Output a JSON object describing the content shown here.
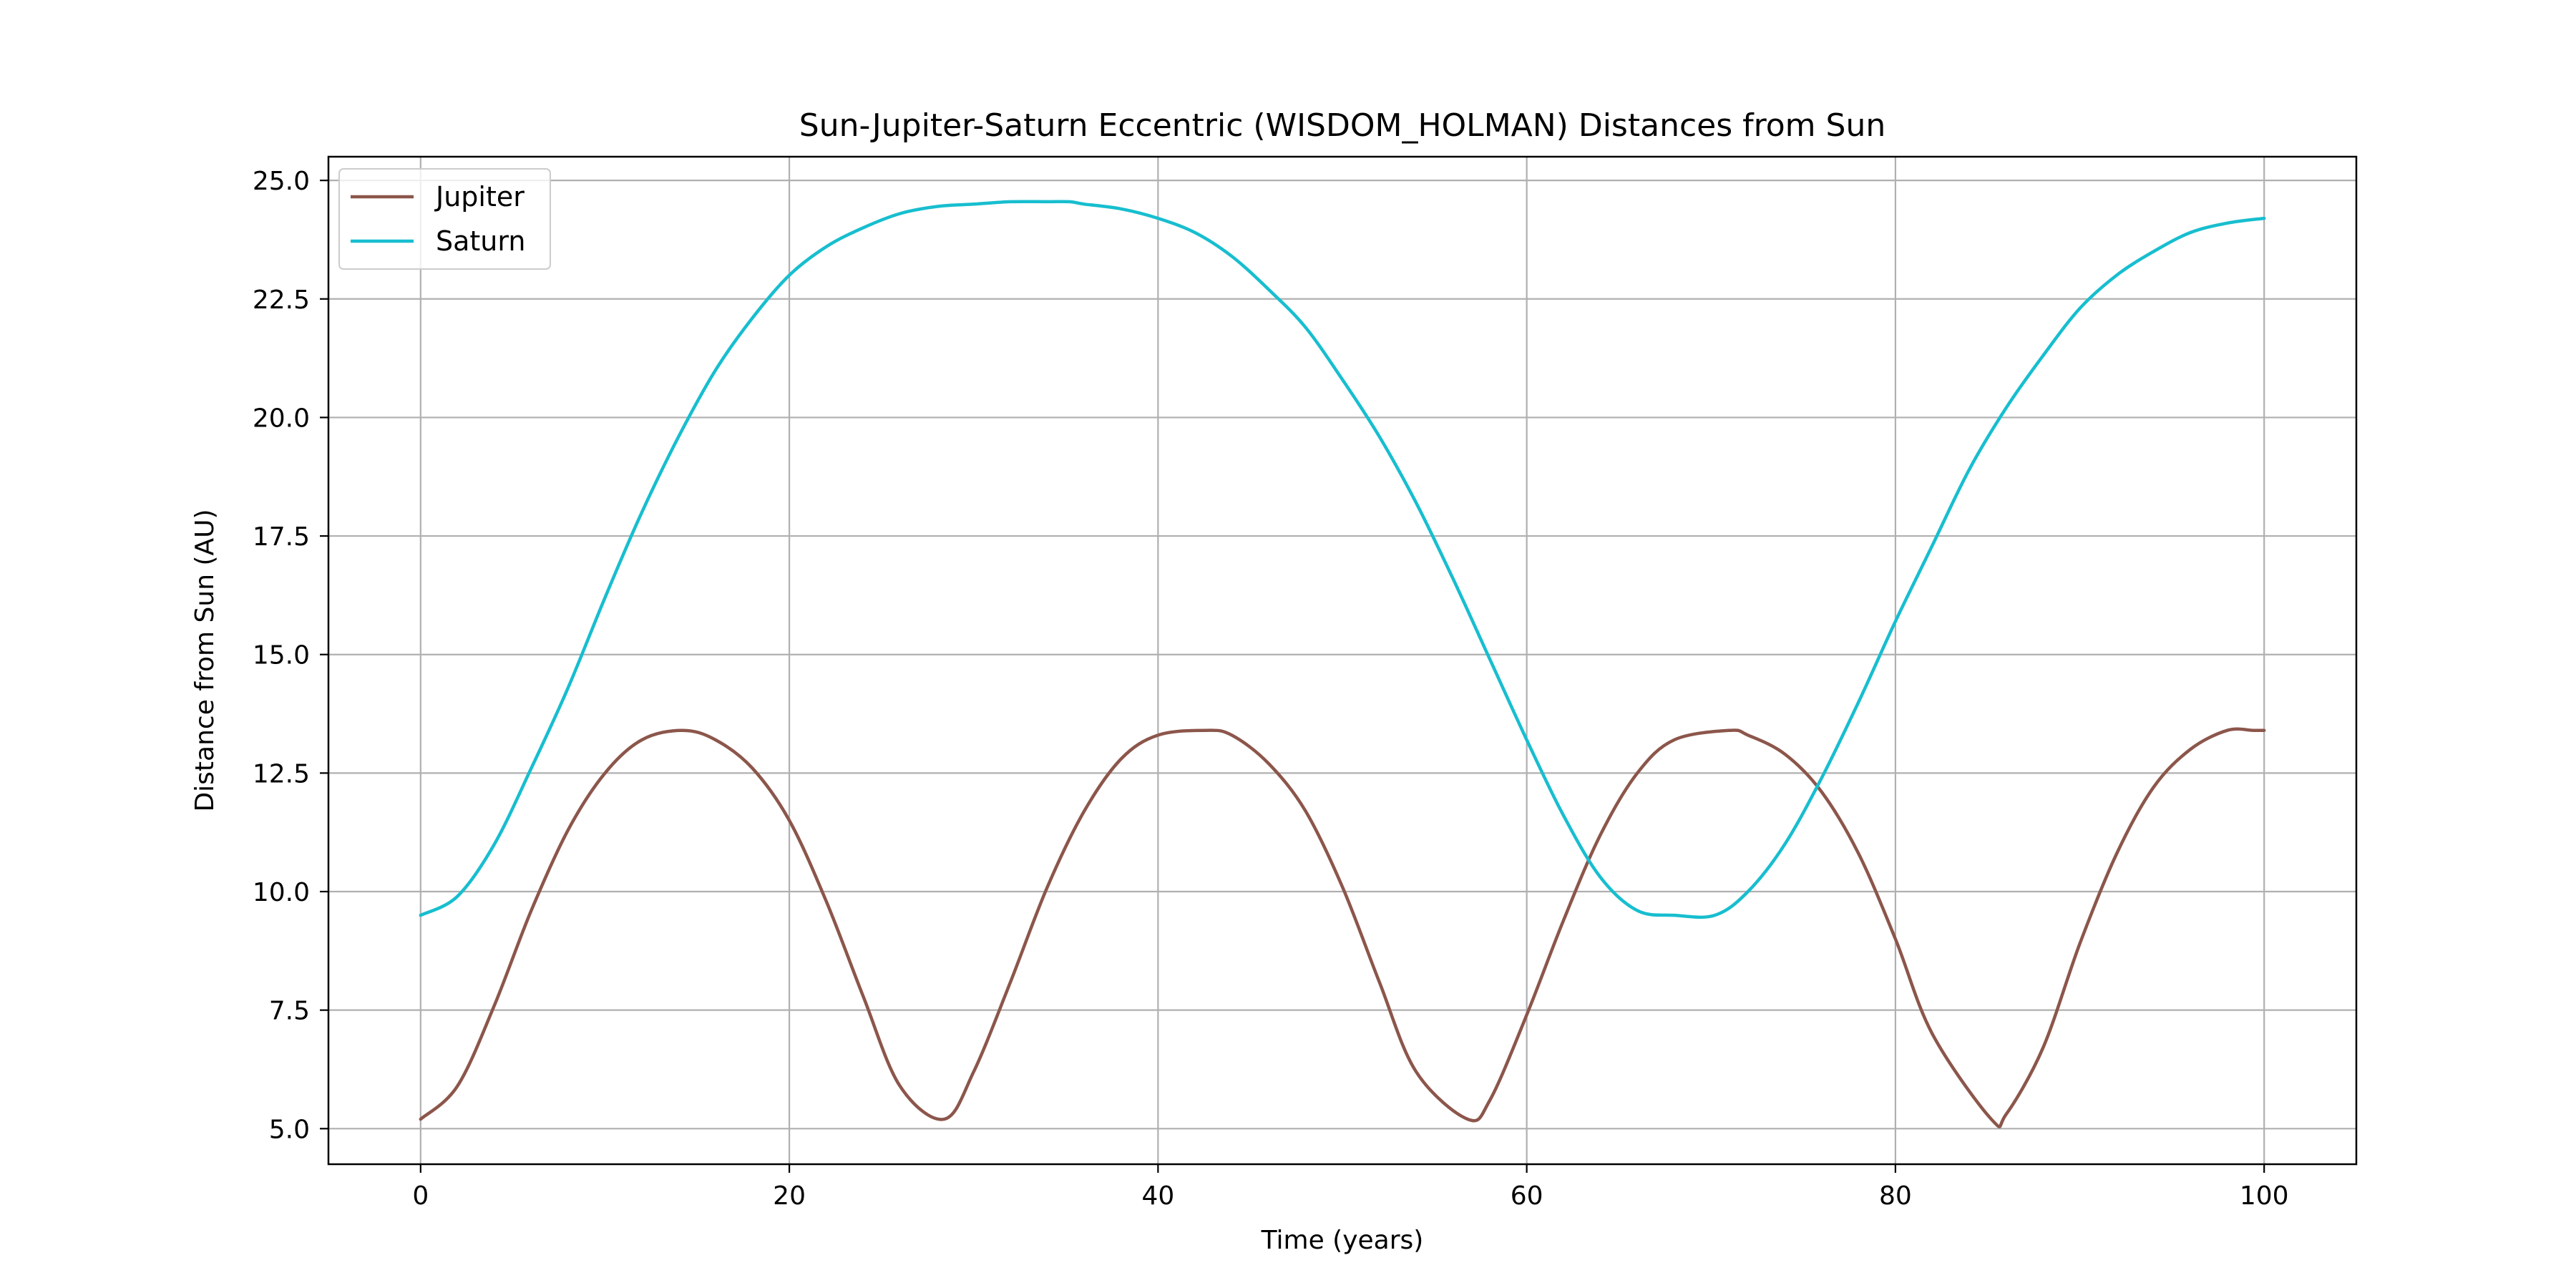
{
  "chart_data": {
    "type": "line",
    "title": "Sun-Jupiter-Saturn Eccentric (WISDOM_HOLMAN) Distances from Sun",
    "xlabel": "Time (years)",
    "ylabel": "Distance from Sun (AU)",
    "xlim": [
      -5,
      105
    ],
    "ylim": [
      4.25,
      25.5
    ],
    "xticks": [
      0,
      20,
      40,
      60,
      80,
      100
    ],
    "xtick_labels": [
      "0",
      "20",
      "40",
      "60",
      "80",
      "100"
    ],
    "yticks": [
      5.0,
      7.5,
      10.0,
      12.5,
      15.0,
      17.5,
      20.0,
      22.5,
      25.0
    ],
    "ytick_labels": [
      "5.0",
      "7.5",
      "10.0",
      "12.5",
      "15.0",
      "17.5",
      "20.0",
      "22.5",
      "25.0"
    ],
    "grid": true,
    "legend_position": "upper left",
    "series": [
      {
        "name": "Jupiter",
        "color": "#8c564b",
        "x": [
          0,
          2,
          4,
          6,
          8,
          10,
          12,
          14.2,
          16,
          18,
          20,
          22,
          24,
          26,
          28.4,
          30,
          32,
          34,
          36,
          38,
          40,
          42.6,
          44,
          46,
          48,
          50,
          52,
          54,
          56.8,
          58,
          60,
          62,
          64,
          66,
          68,
          71,
          72,
          74,
          76,
          78,
          80,
          82,
          85.2,
          86,
          88,
          90,
          92,
          94,
          96,
          98,
          99.4,
          100
        ],
        "y": [
          5.2,
          5.9,
          7.6,
          9.6,
          11.3,
          12.5,
          13.2,
          13.4,
          13.2,
          12.6,
          11.5,
          9.8,
          7.8,
          5.9,
          5.2,
          6.2,
          8.1,
          10.1,
          11.7,
          12.8,
          13.3,
          13.4,
          13.3,
          12.7,
          11.7,
          10.1,
          8.1,
          6.2,
          5.2,
          5.6,
          7.4,
          9.4,
          11.2,
          12.5,
          13.2,
          13.4,
          13.3,
          12.9,
          12.1,
          10.8,
          9.0,
          7.0,
          5.2,
          5.3,
          6.7,
          8.9,
          10.8,
          12.2,
          13.0,
          13.4,
          13.4,
          13.4
        ]
      },
      {
        "name": "Saturn",
        "color": "#17becf",
        "x": [
          0,
          2,
          4,
          6,
          8,
          10,
          12,
          14,
          16,
          18,
          20,
          22,
          24,
          26,
          28,
          30,
          32,
          34,
          35.2,
          36,
          38,
          40,
          42,
          44,
          46,
          48,
          50,
          52,
          54,
          56,
          58,
          60,
          62,
          64,
          66,
          68,
          70.2,
          72,
          74,
          76,
          78,
          80,
          82,
          84,
          86,
          88,
          90,
          92,
          94,
          96,
          98,
          100
        ],
        "y": [
          9.5,
          9.9,
          11.0,
          12.6,
          14.3,
          16.2,
          18.0,
          19.6,
          21.0,
          22.1,
          23.0,
          23.6,
          24.0,
          24.3,
          24.45,
          24.5,
          24.55,
          24.55,
          24.55,
          24.5,
          24.4,
          24.2,
          23.9,
          23.4,
          22.7,
          21.9,
          20.8,
          19.6,
          18.2,
          16.6,
          14.9,
          13.2,
          11.6,
          10.3,
          9.6,
          9.5,
          9.5,
          10.0,
          11.0,
          12.4,
          14.0,
          15.7,
          17.3,
          18.9,
          20.2,
          21.3,
          22.3,
          23.0,
          23.5,
          23.9,
          24.1,
          24.2
        ]
      }
    ]
  }
}
